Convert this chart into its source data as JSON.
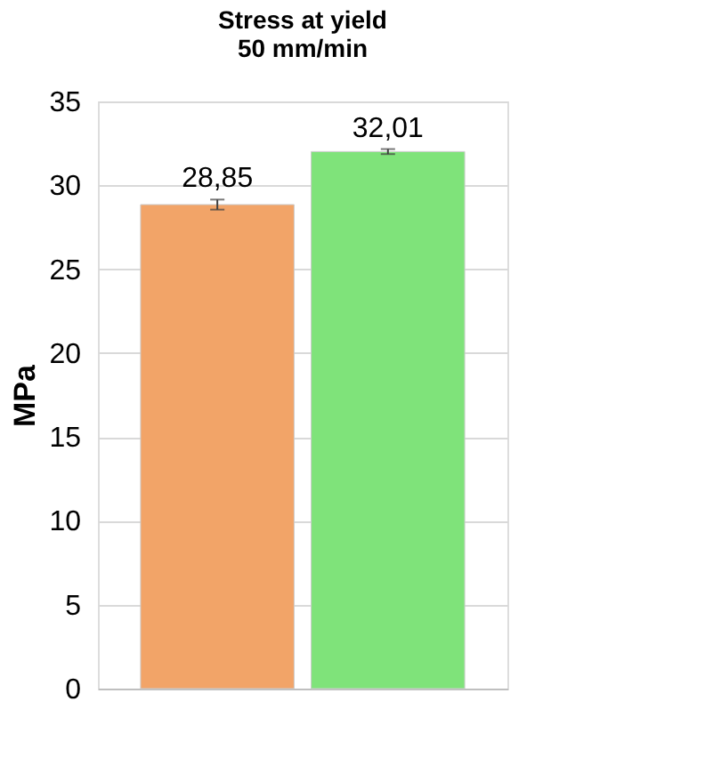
{
  "chart_data": {
    "type": "bar",
    "title": "Stress at yield",
    "subtitle": "50 mm/min",
    "ylabel": "MPa",
    "categories": [
      null,
      null
    ],
    "values": [
      28.85,
      32.01
    ],
    "colors": [
      "#f2a468",
      "#7fe37a"
    ],
    "errors": [
      0.3,
      0.15
    ],
    "value_labels": [
      "28,85",
      "32,01"
    ],
    "ylim": [
      0,
      35
    ],
    "yticks": [
      0,
      5,
      10,
      15,
      20,
      25,
      30,
      35
    ],
    "grid": "y"
  }
}
